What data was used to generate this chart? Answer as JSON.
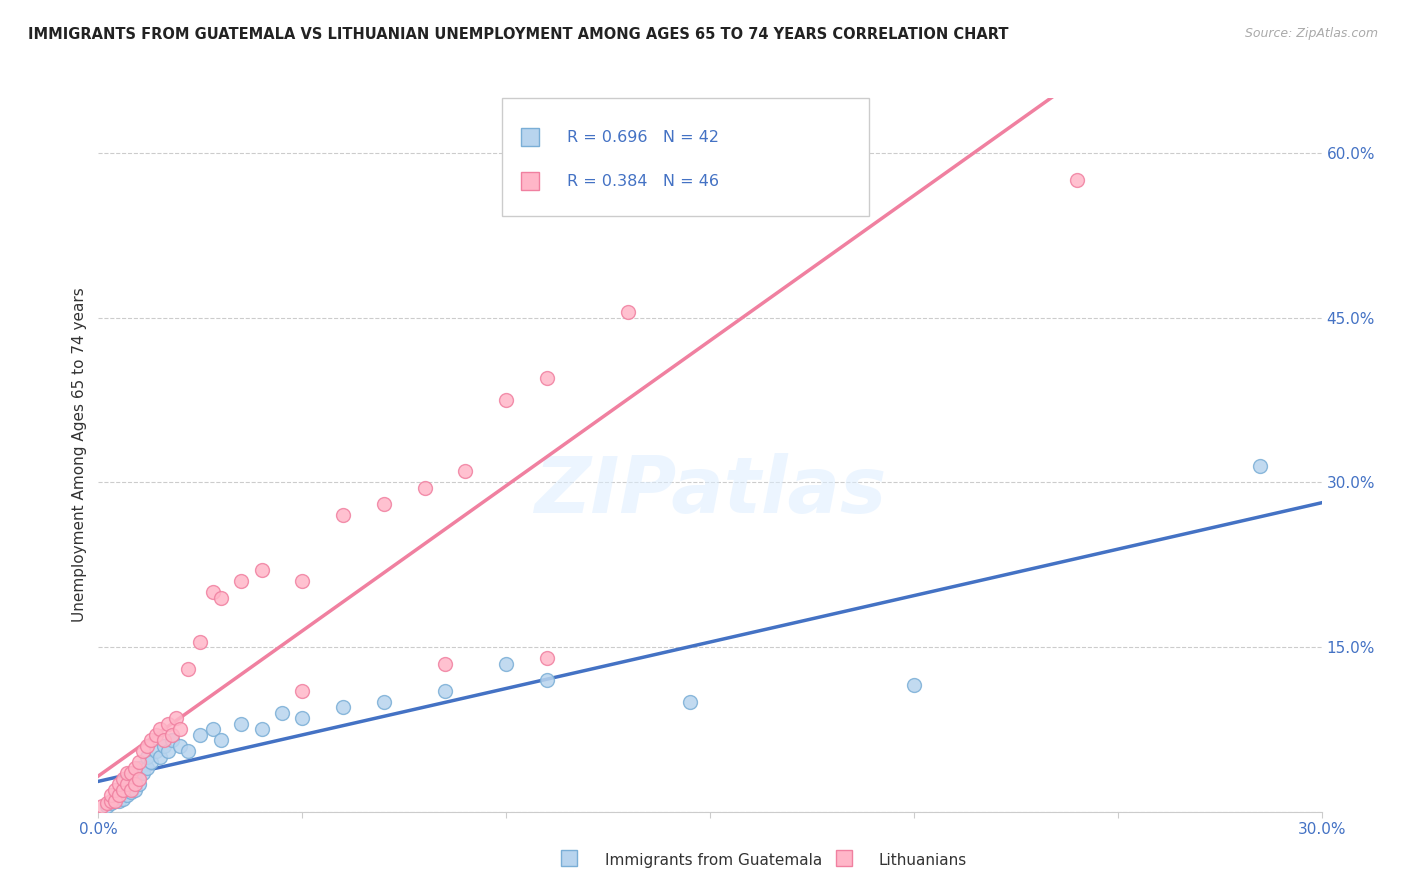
{
  "title": "IMMIGRANTS FROM GUATEMALA VS LITHUANIAN UNEMPLOYMENT AMONG AGES 65 TO 74 YEARS CORRELATION CHART",
  "source": "Source: ZipAtlas.com",
  "ylabel": "Unemployment Among Ages 65 to 74 years",
  "xlim": [
    0.0,
    0.3
  ],
  "ylim": [
    0.0,
    0.65
  ],
  "xticks": [
    0.0,
    0.05,
    0.1,
    0.15,
    0.2,
    0.25,
    0.3
  ],
  "xtick_labels": [
    "0.0%",
    "",
    "",
    "",
    "",
    "",
    "30.0%"
  ],
  "yticks_right": [
    0.0,
    0.15,
    0.3,
    0.45,
    0.6
  ],
  "ytick_labels_right": [
    "",
    "15.0%",
    "30.0%",
    "45.0%",
    "60.0%"
  ],
  "series1_name": "Immigrants from Guatemala",
  "series1_color": "#b8d4ee",
  "series1_edge": "#7aaed6",
  "series1_R": 0.696,
  "series1_N": 42,
  "series1_line_color": "#4472c4",
  "series2_name": "Lithuanians",
  "series2_color": "#ffb6c8",
  "series2_edge": "#f080a0",
  "series2_R": 0.384,
  "series2_N": 46,
  "series2_line_color": "#f080a0",
  "legend_color": "#4472c4",
  "watermark_text": "ZIPatlas",
  "scatter1_x": [
    0.002,
    0.003,
    0.004,
    0.004,
    0.005,
    0.005,
    0.006,
    0.006,
    0.007,
    0.007,
    0.008,
    0.008,
    0.009,
    0.009,
    0.01,
    0.01,
    0.011,
    0.012,
    0.012,
    0.013,
    0.014,
    0.015,
    0.016,
    0.017,
    0.018,
    0.02,
    0.022,
    0.025,
    0.028,
    0.03,
    0.035,
    0.04,
    0.045,
    0.05,
    0.06,
    0.07,
    0.085,
    0.1,
    0.11,
    0.145,
    0.2,
    0.285
  ],
  "scatter1_y": [
    0.005,
    0.008,
    0.01,
    0.012,
    0.015,
    0.01,
    0.012,
    0.02,
    0.015,
    0.025,
    0.018,
    0.03,
    0.02,
    0.035,
    0.025,
    0.04,
    0.035,
    0.04,
    0.05,
    0.045,
    0.055,
    0.05,
    0.06,
    0.055,
    0.065,
    0.06,
    0.055,
    0.07,
    0.075,
    0.065,
    0.08,
    0.075,
    0.09,
    0.085,
    0.095,
    0.1,
    0.11,
    0.135,
    0.12,
    0.1,
    0.115,
    0.315
  ],
  "scatter2_x": [
    0.001,
    0.002,
    0.003,
    0.003,
    0.004,
    0.004,
    0.005,
    0.005,
    0.006,
    0.006,
    0.007,
    0.007,
    0.008,
    0.008,
    0.009,
    0.009,
    0.01,
    0.01,
    0.011,
    0.012,
    0.013,
    0.014,
    0.015,
    0.016,
    0.017,
    0.018,
    0.019,
    0.02,
    0.022,
    0.025,
    0.028,
    0.03,
    0.035,
    0.04,
    0.05,
    0.06,
    0.07,
    0.08,
    0.09,
    0.1,
    0.11,
    0.13,
    0.05,
    0.085,
    0.11,
    0.24
  ],
  "scatter2_y": [
    0.005,
    0.008,
    0.01,
    0.015,
    0.01,
    0.02,
    0.015,
    0.025,
    0.02,
    0.03,
    0.025,
    0.035,
    0.02,
    0.035,
    0.025,
    0.04,
    0.03,
    0.045,
    0.055,
    0.06,
    0.065,
    0.07,
    0.075,
    0.065,
    0.08,
    0.07,
    0.085,
    0.075,
    0.13,
    0.155,
    0.2,
    0.195,
    0.21,
    0.22,
    0.21,
    0.27,
    0.28,
    0.295,
    0.31,
    0.375,
    0.395,
    0.455,
    0.11,
    0.135,
    0.14,
    0.575
  ]
}
